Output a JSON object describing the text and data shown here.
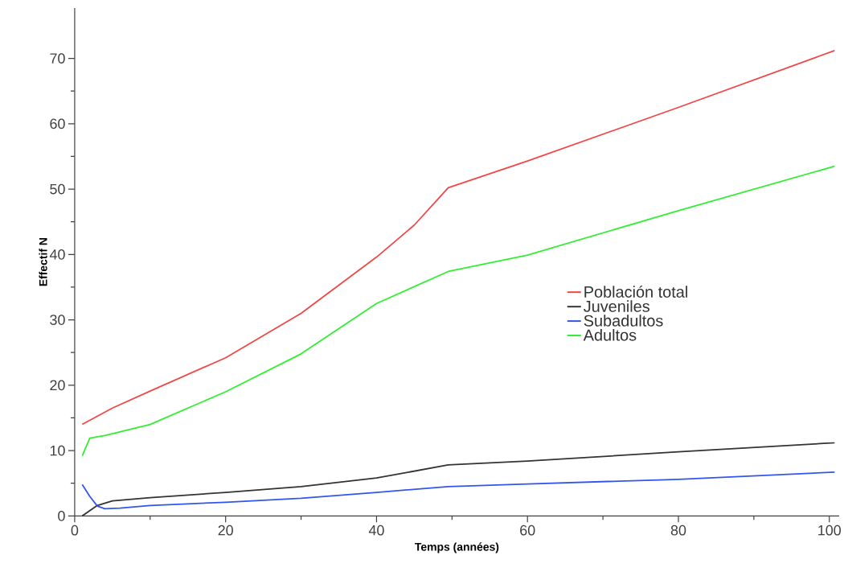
{
  "chart_data": {
    "type": "line",
    "xlabel": "Temps (années)",
    "ylabel": "Effectif N",
    "xlim": [
      0,
      101.3
    ],
    "ylim": [
      0,
      77.7
    ],
    "xticks": [
      0,
      20,
      40,
      60,
      80,
      100
    ],
    "yticks": [
      0,
      10,
      20,
      30,
      40,
      50,
      60,
      70
    ],
    "grid": false,
    "legend": "right",
    "marker": "none",
    "line_style": "solid",
    "series": [
      {
        "name": "Población total",
        "color": "#f04848",
        "x": [
          1,
          5,
          10,
          20,
          30,
          40,
          45,
          49.5,
          60,
          80,
          100.7
        ],
        "values": [
          14.0,
          16.5,
          19.1,
          24.2,
          31.0,
          39.6,
          44.5,
          50.2,
          54.3,
          62.5,
          71.2
        ]
      },
      {
        "name": "Juveniles",
        "color": "#333333",
        "x": [
          1,
          2,
          3,
          5,
          10,
          20,
          30,
          40,
          49.5,
          60,
          80,
          100.7
        ],
        "values": [
          0,
          0.8,
          1.6,
          2.3,
          2.8,
          3.6,
          4.5,
          5.8,
          7.8,
          8.4,
          9.8,
          11.2
        ]
      },
      {
        "name": "Subadultos",
        "color": "#3355ee",
        "x": [
          1,
          2,
          3,
          4,
          6,
          10,
          20,
          30,
          40,
          49.5,
          60,
          80,
          100.7
        ],
        "values": [
          4.8,
          3.0,
          1.5,
          1.1,
          1.2,
          1.6,
          2.1,
          2.7,
          3.6,
          4.5,
          4.9,
          5.6,
          6.7
        ]
      },
      {
        "name": "Adultos",
        "color": "#33ee33",
        "x": [
          1,
          2,
          4,
          10,
          20,
          30,
          40,
          49.5,
          60,
          80,
          100.7
        ],
        "values": [
          9.2,
          11.9,
          12.3,
          14.0,
          19.0,
          24.8,
          32.5,
          37.4,
          39.9,
          46.7,
          53.5
        ]
      }
    ]
  }
}
